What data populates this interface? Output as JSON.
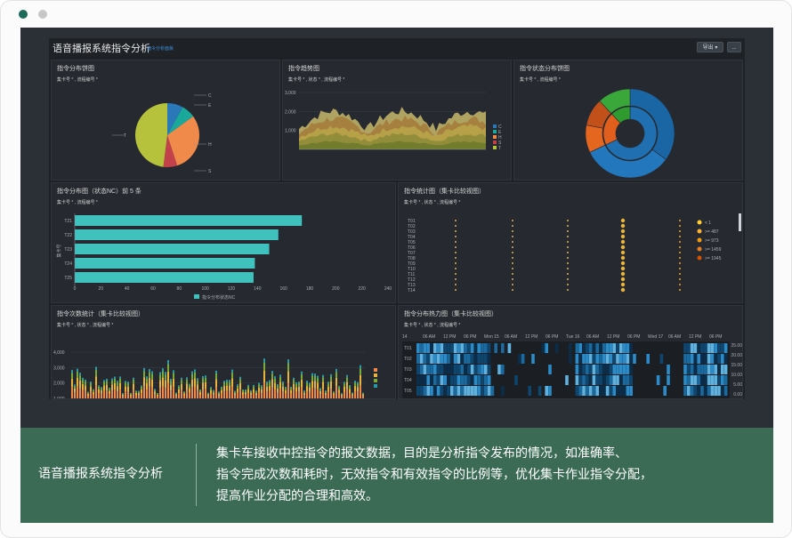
{
  "window": {
    "controls": [
      "close-dot",
      "minimize-dot"
    ]
  },
  "dashboard": {
    "title": "语音播报系统指令分析",
    "subtitle": "指令分析面板",
    "export_label": "导出 ▾",
    "more_label": "..."
  },
  "panels": {
    "p1": {
      "title": "指令分布饼图",
      "filter": "集卡号 * , 流程编号 *"
    },
    "p2": {
      "title": "指令趋势图",
      "filter": "集卡号 * , 状态 * , 流程编号 *"
    },
    "p3": {
      "title": "指令状态分布饼图",
      "filter": "集卡号 * , 流程编号 *"
    },
    "p4": {
      "title": "指令分布图（状态NC）前 5 条",
      "filter": "集卡号 * , 流程编号 *"
    },
    "p5": {
      "title": "指令统计图（集卡比较视图）",
      "filter": "集卡号 * , 状态 * , 流程编号 *"
    },
    "p6": {
      "title": "指令次数统计（集卡比较视图）",
      "filter": "集卡号 * , 状态 * , 流程编号 *"
    },
    "p7": {
      "title": "指令分布热力图（集卡比较视图）",
      "filter": "集卡号 * , 状态 * , 流程编号 *"
    }
  },
  "charts": {
    "pie": {
      "labels": [
        "C",
        "E",
        "H",
        "S",
        "T"
      ],
      "values": [
        8,
        7,
        30,
        7,
        48
      ],
      "colors": [
        "#2a78b8",
        "#19a89a",
        "#f08a4b",
        "#c2414b",
        "#b6c23c"
      ]
    },
    "area": {
      "yticks": [
        "3,000",
        "2,000",
        "1,000"
      ],
      "legend": [
        "C",
        "E",
        "H",
        "S",
        "T"
      ]
    },
    "sunburst": {
      "inner": [
        {
          "value": 0.68,
          "color": "#1f6fb1"
        },
        {
          "value": 0.2,
          "color": "#e05f1c"
        },
        {
          "value": 0.12,
          "color": "#2f9a2f"
        }
      ],
      "outer": [
        {
          "value": 0.35,
          "color": "#1a65a3"
        },
        {
          "value": 0.33,
          "color": "#2377bd"
        },
        {
          "value": 0.1,
          "color": "#e5661f"
        },
        {
          "value": 0.1,
          "color": "#c2501a"
        },
        {
          "value": 0.12,
          "color": "#3aa73a"
        }
      ]
    },
    "bars": {
      "categories": [
        "T21",
        "T22",
        "T23",
        "T24",
        "T25"
      ],
      "values": [
        174,
        156,
        149,
        138,
        137
      ],
      "xticks": [
        "0",
        "20",
        "40",
        "60",
        "80",
        "100",
        "120",
        "140",
        "160",
        "180",
        "200",
        "220",
        "240"
      ],
      "xmax": 240,
      "legend_label": "指令分布状态NC",
      "ylabel": "集卡号"
    },
    "dots": {
      "rows": [
        "T01",
        "T02",
        "T03",
        "T04",
        "T05",
        "T06",
        "T07",
        "T08",
        "T09",
        "T10",
        "T11",
        "T12",
        "T13",
        "T14"
      ],
      "legend": [
        "< 1",
        ">= 487",
        ">= 973",
        ">= 1459",
        ">= 1945"
      ]
    },
    "stacked": {
      "yticks": [
        "4,000",
        "3,000",
        "2,000",
        "1,000"
      ]
    },
    "heatmap": {
      "time_labels": [
        "14",
        "06 AM",
        "12 PM",
        "06 PM",
        "Mon 15",
        "06 AM",
        "12 PM",
        "06 PM",
        "Tue 16",
        "06 AM",
        "12 PM",
        "06 PM",
        "Wed 17",
        "06 AM",
        "12 PM",
        "06 PM"
      ],
      "rows": [
        "T01",
        "T02",
        "T03",
        "T04",
        "T05"
      ],
      "legend": [
        "25.00",
        "20.00",
        "15.00",
        "10.00",
        "5.00",
        "0.00"
      ]
    }
  },
  "caption": {
    "title": "语音播报系统指令分析",
    "lines": [
      "集卡车接收中控指令的报文数据，目的是分析指令发布的情况，如准确率、",
      "指令完成次数和耗时，无效指令和有效指令的比例等，优化集卡作业指令分配，",
      "提高作业分配的合理和高效。"
    ]
  }
}
